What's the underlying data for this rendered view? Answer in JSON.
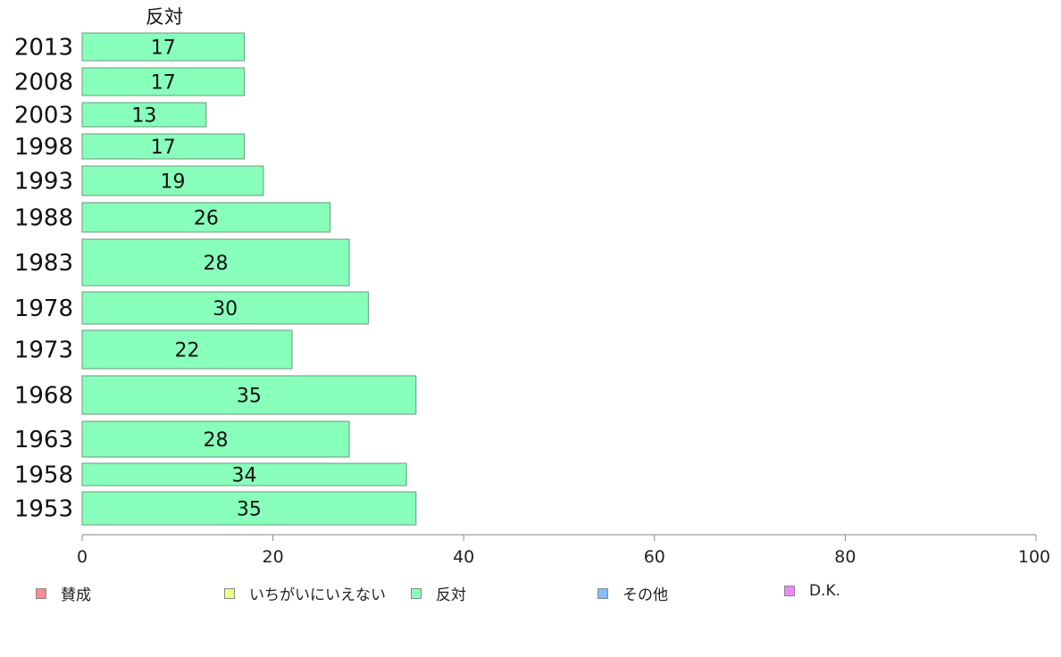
{
  "chart_data": {
    "type": "bar",
    "orientation": "horizontal",
    "title": "反対",
    "categories": [
      "2013",
      "2008",
      "2003",
      "1998",
      "1993",
      "1988",
      "1983",
      "1978",
      "1973",
      "1968",
      "1963",
      "1958",
      "1953"
    ],
    "series": [
      {
        "name": "反対",
        "color": "#88ffbb",
        "values": [
          17,
          17,
          13,
          17,
          19,
          26,
          28,
          30,
          22,
          35,
          28,
          34,
          35
        ]
      }
    ],
    "xlim": [
      0,
      100
    ],
    "xticks": [
      "0",
      "20",
      "40",
      "60",
      "80",
      "100"
    ],
    "grid": false,
    "legend_position": "bottom",
    "legend": [
      {
        "label": "賛成",
        "color": "#ff8c8c"
      },
      {
        "label": "いちがいにいえない",
        "color": "#eeff88"
      },
      {
        "label": "反対",
        "color": "#88ffbb"
      },
      {
        "label": "その他",
        "color": "#88bbff"
      },
      {
        "label": "D.K.",
        "color": "#ee88ff"
      }
    ]
  }
}
